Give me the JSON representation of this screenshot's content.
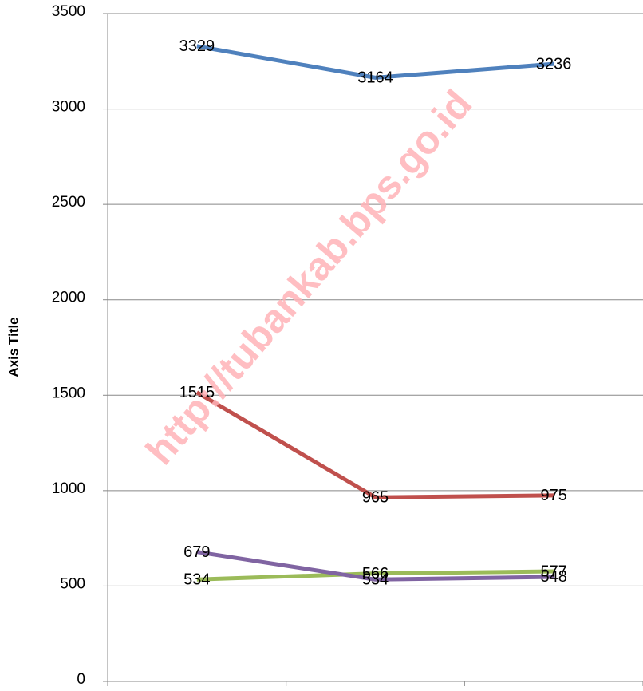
{
  "chart_data": {
    "type": "line",
    "y_axis_label": "Axis Title",
    "annotation": "http://tubankab.bps.go.id",
    "categories": [
      null,
      null,
      null
    ],
    "series": [
      {
        "color": "#4f81bd",
        "values": [
          3329,
          3164,
          3236
        ]
      },
      {
        "color": "#c0504d",
        "values": [
          1515,
          965,
          975
        ]
      },
      {
        "color": "#9bbb59",
        "values": [
          534,
          566,
          577
        ]
      },
      {
        "color": "#8064a2",
        "values": [
          679,
          534,
          548
        ]
      }
    ],
    "ylim": [
      0,
      3500
    ],
    "yticks": [
      0,
      500,
      1000,
      1500,
      2000,
      2500,
      3000,
      3500
    ],
    "grid": true
  }
}
